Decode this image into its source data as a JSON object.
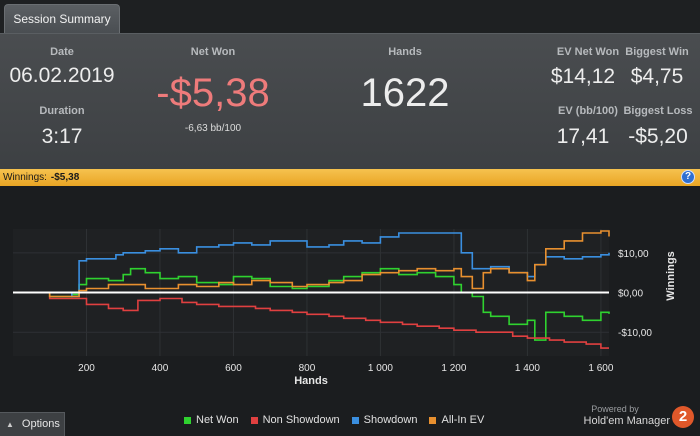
{
  "tab": {
    "label": "Session Summary"
  },
  "summary": {
    "date_label": "Date",
    "date": "06.02.2019",
    "duration_label": "Duration",
    "duration": "3:17",
    "net_won_label": "Net Won",
    "net_won": "-$5,38",
    "net_won_bb": "-6,63 bb/100",
    "hands_label": "Hands",
    "hands": "1622",
    "ev_net_won_label": "EV Net Won",
    "ev_net_won": "$14,12",
    "biggest_win_label": "Biggest Win",
    "biggest_win": "$4,75",
    "ev_bb_label": "EV (bb/100)",
    "ev_bb": "17,41",
    "biggest_loss_label": "Biggest Loss",
    "biggest_loss": "-$5,20"
  },
  "winnings_bar": {
    "label": "Winnings:",
    "value": "-$5,38",
    "help": "?"
  },
  "chart_data": {
    "type": "line",
    "xlabel": "Hands",
    "ylabel": "Winnings",
    "xlim": [
      0,
      1622
    ],
    "ylim": [
      -16,
      16
    ],
    "x_ticks": [
      200,
      400,
      600,
      800,
      1000,
      1200,
      1400,
      1600
    ],
    "x_tick_labels": [
      "200",
      "400",
      "600",
      "800",
      "1 000",
      "1 200",
      "1 400",
      "1 600"
    ],
    "y_ticks": [
      10,
      0,
      -10
    ],
    "y_tick_labels": [
      "$10,00",
      "$0,00",
      "-$10,00"
    ],
    "grid": true,
    "legend_position": "bottom",
    "series": [
      {
        "name": "Net Won",
        "color": "#2fd22f",
        "x": [
          0,
          100,
          160,
          180,
          200,
          260,
          300,
          320,
          360,
          400,
          450,
          500,
          560,
          600,
          650,
          700,
          760,
          800,
          860,
          900,
          950,
          1000,
          1050,
          1100,
          1150,
          1200,
          1220,
          1250,
          1280,
          1300,
          1350,
          1400,
          1420,
          1450,
          1500,
          1550,
          1600,
          1622
        ],
        "y": [
          0,
          -1,
          -0.5,
          2,
          3.5,
          3,
          4.5,
          6,
          5,
          3.5,
          4,
          2.5,
          2,
          4,
          3.5,
          1.5,
          1,
          1.5,
          3,
          4,
          5,
          6,
          4.5,
          5,
          4,
          2,
          0,
          -1,
          -5,
          -6,
          -8,
          -7,
          -12,
          -5,
          -6,
          -7,
          -5,
          -5.4
        ]
      },
      {
        "name": "Non Showdown",
        "color": "#e04040",
        "x": [
          0,
          100,
          200,
          260,
          300,
          340,
          400,
          460,
          500,
          560,
          600,
          660,
          700,
          760,
          800,
          860,
          900,
          960,
          1000,
          1060,
          1100,
          1160,
          1200,
          1260,
          1300,
          1360,
          1400,
          1460,
          1500,
          1560,
          1600,
          1622
        ],
        "y": [
          0,
          -1.5,
          -3,
          -4,
          -4.5,
          -2,
          -1.5,
          -2.5,
          -3,
          -3.5,
          -3.5,
          -4,
          -4.5,
          -5,
          -5.5,
          -6,
          -6.5,
          -7,
          -7.5,
          -8,
          -8.5,
          -9,
          -9.5,
          -10,
          -10,
          -11,
          -11.5,
          -12,
          -12.5,
          -13,
          -14,
          -14
        ]
      },
      {
        "name": "Showdown",
        "color": "#3a8fe0",
        "x": [
          0,
          100,
          160,
          180,
          200,
          280,
          300,
          360,
          400,
          450,
          500,
          560,
          600,
          650,
          700,
          760,
          800,
          860,
          900,
          950,
          1000,
          1050,
          1100,
          1150,
          1200,
          1220,
          1250,
          1300,
          1350,
          1400,
          1420,
          1450,
          1500,
          1550,
          1600,
          1622
        ],
        "y": [
          0,
          0,
          -1,
          8,
          8.5,
          9.5,
          10,
          10.5,
          11,
          10,
          11.5,
          12,
          12.5,
          12,
          13,
          13,
          11.5,
          12,
          13,
          12.5,
          14,
          15,
          15,
          15,
          15,
          10,
          6,
          6.5,
          5,
          4,
          7,
          9,
          8.5,
          9,
          9.5,
          10
        ]
      },
      {
        "name": "All-In EV",
        "color": "#e8902f",
        "x": [
          0,
          100,
          160,
          180,
          200,
          260,
          300,
          360,
          400,
          450,
          500,
          560,
          600,
          650,
          700,
          760,
          800,
          860,
          900,
          950,
          1000,
          1050,
          1100,
          1150,
          1200,
          1220,
          1250,
          1280,
          1300,
          1350,
          1400,
          1420,
          1450,
          1500,
          1550,
          1600,
          1622
        ],
        "y": [
          0,
          -1,
          -1,
          0.5,
          1,
          2,
          2,
          1,
          1,
          2,
          1.5,
          2.5,
          2,
          3,
          2.5,
          1.5,
          2,
          2.5,
          3,
          4.5,
          5,
          5.5,
          6,
          5.5,
          6,
          4,
          1,
          5,
          6,
          5,
          3,
          7,
          11,
          13,
          15,
          15.5,
          14.1
        ]
      }
    ]
  },
  "legend": [
    {
      "name": "Net Won",
      "color": "#2fd22f"
    },
    {
      "name": "Non Showdown",
      "color": "#e04040"
    },
    {
      "name": "Showdown",
      "color": "#3a8fe0"
    },
    {
      "name": "All-In EV",
      "color": "#e8902f"
    }
  ],
  "footer": {
    "options_label": "Options",
    "powered_by": "Powered by",
    "brand": "Hold'em Manager",
    "logo": "2"
  }
}
